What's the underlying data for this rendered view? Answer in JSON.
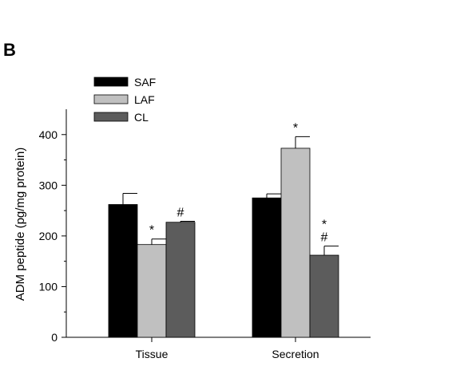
{
  "panel_label": "B",
  "chart_data": {
    "type": "bar",
    "categories": [
      "Tissue",
      "Secretion"
    ],
    "ylabel": "ADM peptide (pg/mg protein)",
    "xlabel": "",
    "ylim": [
      0,
      450
    ],
    "yticks": [
      0,
      100,
      200,
      300,
      400
    ],
    "legend_position": "top-left",
    "grid": false,
    "series": [
      {
        "name": "SAF",
        "color": "#000000",
        "values": [
          262,
          275
        ],
        "errors": [
          22,
          8
        ],
        "annotations": [
          "",
          ""
        ]
      },
      {
        "name": "LAF",
        "color": "#c0c0c0",
        "values": [
          183,
          373
        ],
        "errors": [
          11,
          23
        ],
        "annotations": [
          "*",
          "*"
        ]
      },
      {
        "name": "CL",
        "color": "#5c5c5c",
        "values": [
          227,
          162
        ],
        "errors": [
          2,
          18
        ],
        "annotations": [
          "#",
          "*\n#"
        ]
      }
    ]
  }
}
